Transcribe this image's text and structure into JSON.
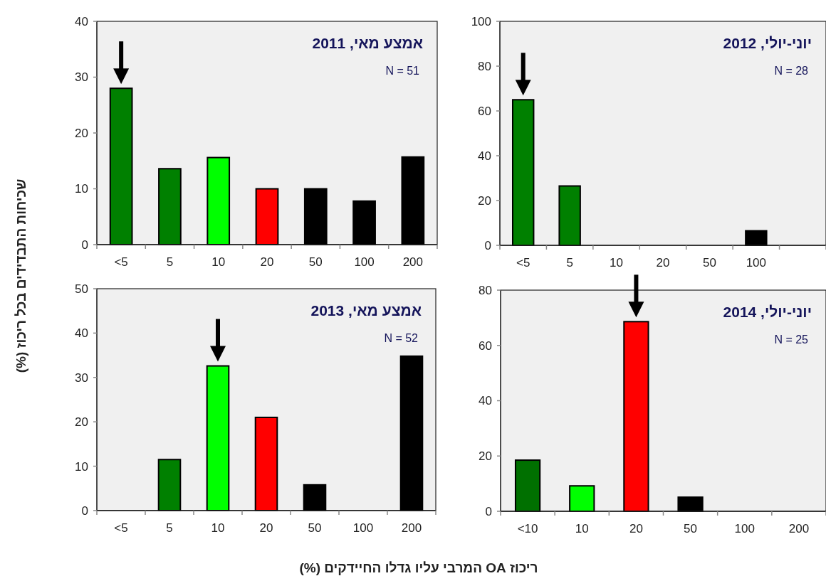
{
  "chart_data": [
    {
      "type": "bar",
      "title": "אמצע מאי, 2011",
      "annotations": [
        "N = 51"
      ],
      "ylabel": "שכיחות התבדידים בכל ריכוז (%)",
      "categories": [
        "<5",
        "5",
        "10",
        "20",
        "50",
        "100",
        "200"
      ],
      "values": [
        28,
        13.6,
        15.6,
        10,
        10,
        7.8,
        15.7
      ],
      "colors": [
        "#008000",
        "#008000",
        "#00ff00",
        "#ff0000",
        "#000000",
        "#000000",
        "#000000"
      ],
      "ylim": [
        0,
        40
      ],
      "yticks": [
        0,
        10,
        20,
        30,
        40
      ],
      "grid": false
    },
    {
      "type": "bar",
      "title": "יוני-יולי, 2012",
      "annotations": [
        "N = 28"
      ],
      "categories": [
        "<5",
        "5",
        "10",
        "20",
        "50",
        "100",
        null
      ],
      "values": [
        65,
        26.5,
        0,
        0,
        0,
        6.5,
        0
      ],
      "colors": [
        "#008000",
        "#008000",
        "#00ff00",
        "#ff0000",
        "#000000",
        "#000000",
        "#000000"
      ],
      "ylim": [
        0,
        100
      ],
      "yticks": [
        0,
        20,
        40,
        60,
        80,
        100
      ],
      "grid": false
    },
    {
      "type": "bar",
      "title": "אמצע מאי, 2013",
      "annotations": [
        "N = 52"
      ],
      "xlabel": "ריכוז OA המרבי עליו גדלו החיידקים (%)",
      "categories": [
        "<5",
        "5",
        "10",
        "20",
        "50",
        "100",
        "200"
      ],
      "values": [
        0,
        11.5,
        32.6,
        21,
        5.8,
        0,
        34.8
      ],
      "colors": [
        "#008000",
        "#008000",
        "#00ff00",
        "#ff0000",
        "#000000",
        "#000000",
        "#000000"
      ],
      "ylim": [
        0,
        50
      ],
      "yticks": [
        0,
        10,
        20,
        30,
        40,
        50
      ],
      "grid": false
    },
    {
      "type": "bar",
      "title": "יוני-יולי, 2014",
      "annotations": [
        "N = 25"
      ],
      "categories": [
        "<10",
        "10",
        "20",
        "50",
        "100",
        "200"
      ],
      "values": [
        18.5,
        9.2,
        68.6,
        5.1,
        0,
        0
      ],
      "colors": [
        "#007000",
        "#00ff00",
        "#ff0000",
        "#000000",
        "#000000",
        "#000000"
      ],
      "ylim": [
        0,
        80
      ],
      "yticks": [
        0,
        20,
        40,
        60,
        80
      ],
      "grid": false
    }
  ]
}
